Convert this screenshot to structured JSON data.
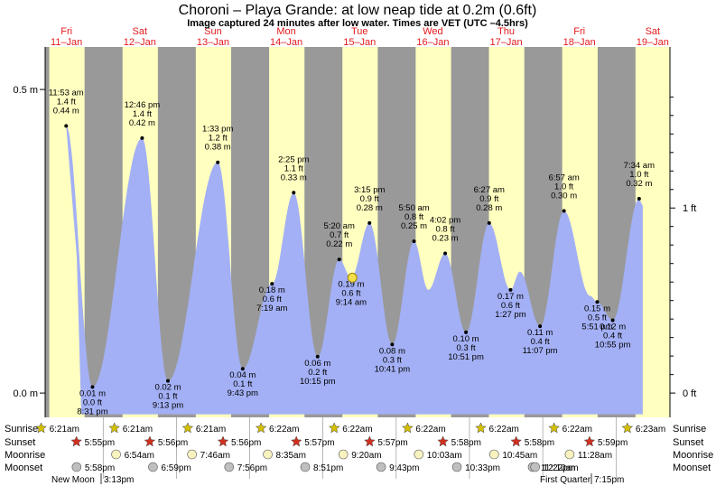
{
  "chart_data": {
    "type": "area",
    "title": "Choroni – Playa Grande: at low  neap tide at 0.2m (0.6ft)",
    "subtitle": "Image captured 24 minutes after low water. Times are VET (UTC –4.5hrs)",
    "xlim": [
      "2013-01-11T05:00",
      "2013-01-19T17:40"
    ],
    "ylim": [
      -0.04,
      0.57
    ],
    "left_ticks": [
      {
        "label": "0.5 m",
        "value": 0.5
      },
      {
        "label": "0.0 m",
        "value": 0.0
      }
    ],
    "right_ticks": [
      {
        "label": "1 ft",
        "value": 1
      },
      {
        "label": "0 ft",
        "value": 0
      }
    ],
    "days": [
      {
        "weekday": "Fri",
        "date": "11–Jan",
        "sunrise": "6:21am",
        "sunset": "5:55pm",
        "moonrise": "",
        "moonset": "5:58pm"
      },
      {
        "weekday": "Sat",
        "date": "12–Jan",
        "sunrise": "6:21am",
        "sunset": "5:56pm",
        "moonrise": "6:54am",
        "moonset": "6:59pm"
      },
      {
        "weekday": "Sun",
        "date": "13–Jan",
        "sunrise": "6:21am",
        "sunset": "5:56pm",
        "moonrise": "7:46am",
        "moonset": "7:56pm"
      },
      {
        "weekday": "Mon",
        "date": "14–Jan",
        "sunrise": "6:22am",
        "sunset": "5:57pm",
        "moonrise": "8:35am",
        "moonset": "8:51pm"
      },
      {
        "weekday": "Tue",
        "date": "15–Jan",
        "sunrise": "6:22am",
        "sunset": "5:57pm",
        "moonrise": "9:20am",
        "moonset": "9:43pm"
      },
      {
        "weekday": "Wed",
        "date": "16–Jan",
        "sunrise": "6:22am",
        "sunset": "5:58pm",
        "moonrise": "10:03am",
        "moonset": "10:33pm"
      },
      {
        "weekday": "Thu",
        "date": "17–Jan",
        "sunrise": "6:22am",
        "sunset": "5:58pm",
        "moonrise": "10:45am",
        "moonset": "11:22pm"
      },
      {
        "weekday": "Fri",
        "date": "18–Jan",
        "sunrise": "6:22am",
        "sunset": "5:59pm",
        "moonrise": "11:28am",
        "moonset": "12:10am"
      },
      {
        "weekday": "Sat",
        "date": "19–Jan",
        "sunrise": "6:23am",
        "sunset": "",
        "moonrise": "",
        "moonset": ""
      }
    ],
    "tide_events": [
      {
        "time": "2013-01-11T11:53",
        "label": "11:53 am",
        "ft": "1.4 ft",
        "m": 0.44,
        "m_label": "0.44 m"
      },
      {
        "time": "2013-01-11T20:31",
        "label": "8:31 pm",
        "ft": "0.0 ft",
        "m": 0.01,
        "m_label": "0.01 m"
      },
      {
        "time": "2013-01-12T12:46",
        "label": "12:46 pm",
        "ft": "1.4 ft",
        "m": 0.42,
        "m_label": "0.42 m"
      },
      {
        "time": "2013-01-12T21:13",
        "label": "9:13 pm",
        "ft": "0.1 ft",
        "m": 0.02,
        "m_label": "0.02 m"
      },
      {
        "time": "2013-01-13T13:33",
        "label": "1:33 pm",
        "ft": "1.2 ft",
        "m": 0.38,
        "m_label": "0.38 m"
      },
      {
        "time": "2013-01-13T21:43",
        "label": "9:43 pm",
        "ft": "0.1 ft",
        "m": 0.04,
        "m_label": "0.04 m"
      },
      {
        "time": "2013-01-14T07:19",
        "label": "7:19 am",
        "ft": "0.6 ft",
        "m": 0.18,
        "m_label": "0.18 m"
      },
      {
        "time": "2013-01-14T14:25",
        "label": "2:25 pm",
        "ft": "1.1 ft",
        "m": 0.33,
        "m_label": "0.33 m"
      },
      {
        "time": "2013-01-14T22:15",
        "label": "10:15 pm",
        "ft": "0.2 ft",
        "m": 0.06,
        "m_label": "0.06 m"
      },
      {
        "time": "2013-01-15T05:20",
        "label": "5:20 am",
        "ft": "0.7 ft",
        "m": 0.22,
        "m_label": "0.22 m"
      },
      {
        "time": "2013-01-15T09:14",
        "label": "9:14 am",
        "ft": "0.6 ft",
        "m": 0.19,
        "m_label": "0.19 m"
      },
      {
        "time": "2013-01-15T15:15",
        "label": "3:15 pm",
        "ft": "0.9 ft",
        "m": 0.28,
        "m_label": "0.28 m"
      },
      {
        "time": "2013-01-15T22:41",
        "label": "10:41 pm",
        "ft": "0.3 ft",
        "m": 0.08,
        "m_label": "0.08 m"
      },
      {
        "time": "2013-01-16T05:50",
        "label": "5:50 am",
        "ft": "0.8 ft",
        "m": 0.25,
        "m_label": "0.25 m"
      },
      {
        "time": "2013-01-16T10:30",
        "label": "",
        "ft": "",
        "m": 0.17,
        "m_label": ""
      },
      {
        "time": "2013-01-16T16:02",
        "label": "4:02 pm",
        "ft": "0.8 ft",
        "m": 0.23,
        "m_label": "0.23 m"
      },
      {
        "time": "2013-01-16T22:51",
        "label": "10:51 pm",
        "ft": "0.3 ft",
        "m": 0.1,
        "m_label": "0.10 m"
      },
      {
        "time": "2013-01-17T06:27",
        "label": "6:27 am",
        "ft": "0.9 ft",
        "m": 0.28,
        "m_label": "0.28 m"
      },
      {
        "time": "2013-01-17T13:27",
        "label": "1:27 pm",
        "ft": "0.6 ft",
        "m": 0.17,
        "m_label": "0.17 m"
      },
      {
        "time": "2013-01-17T16:30",
        "label": "",
        "ft": "",
        "m": 0.2,
        "m_label": ""
      },
      {
        "time": "2013-01-17T23:07",
        "label": "11:07 pm",
        "ft": "0.4 ft",
        "m": 0.11,
        "m_label": "0.11 m"
      },
      {
        "time": "2013-01-18T06:57",
        "label": "6:57 am",
        "ft": "1.0 ft",
        "m": 0.3,
        "m_label": "0.30 m"
      },
      {
        "time": "2013-01-18T15:30",
        "label": "",
        "ft": "",
        "m": 0.16,
        "m_label": ""
      },
      {
        "time": "2013-01-18T17:51",
        "label": "5:51 pm",
        "ft": "0.5 ft",
        "m": 0.15,
        "m_label": "0.15 m"
      },
      {
        "time": "2013-01-18T22:55",
        "label": "10:55 pm",
        "ft": "0.4 ft",
        "m": 0.12,
        "m_label": "0.12 m"
      },
      {
        "time": "2013-01-19T07:34",
        "label": "7:34 am",
        "ft": "1.0 ft",
        "m": 0.32,
        "m_label": "0.32 m"
      }
    ],
    "current_marker": {
      "time": "2013-01-15T09:38",
      "m": 0.19
    },
    "row_labels": [
      "Sunrise",
      "Sunset",
      "Moonrise",
      "Moonset"
    ],
    "moon_phases": [
      {
        "name": "New Moon",
        "time": "3:13pm"
      },
      {
        "name": "First Quarter",
        "time": "7:15pm"
      }
    ],
    "colors": {
      "water": "#a3b0f5",
      "day": "#ffffc0",
      "night": "#999999",
      "daylabel": "#e41a1c",
      "sun_icon": "#d4c000",
      "sunset_icon": "#d03020",
      "moon_icon": "#f8f2bf",
      "moonset_icon": "#bfbfbf"
    }
  }
}
